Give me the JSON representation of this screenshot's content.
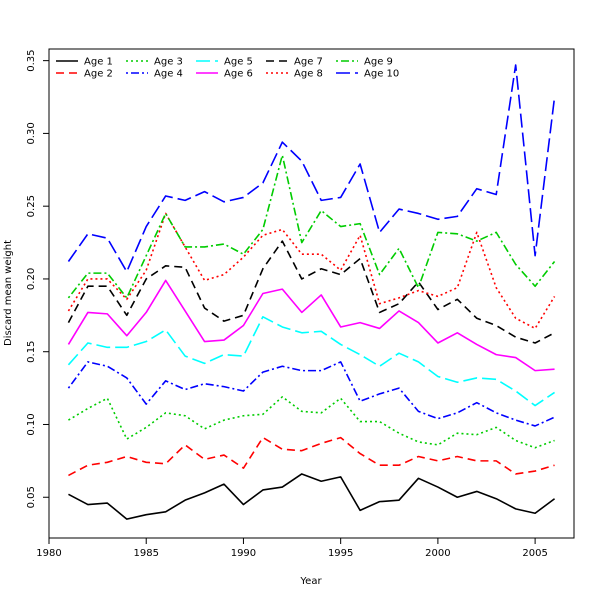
{
  "chart_data": {
    "type": "line",
    "xlabel": "Year",
    "ylabel": "Discard mean weight",
    "xlim": [
      1980,
      2007
    ],
    "ylim": [
      0.022,
      0.358
    ],
    "x_ticks": [
      1980,
      1985,
      1990,
      1995,
      2000,
      2005
    ],
    "y_ticks": [
      0.05,
      0.1,
      0.15,
      0.2,
      0.25,
      0.3,
      0.35
    ],
    "y_tick_labels": [
      "0.05",
      "0.10",
      "0.15",
      "0.20",
      "0.25",
      "0.30",
      "0.35"
    ],
    "legend_position": "top-left",
    "x": [
      1981,
      1982,
      1983,
      1984,
      1985,
      1986,
      1987,
      1988,
      1989,
      1990,
      1991,
      1992,
      1993,
      1994,
      1995,
      1996,
      1997,
      1998,
      1999,
      2000,
      2001,
      2002,
      2003,
      2004,
      2005,
      2006
    ],
    "series": [
      {
        "name": "Age 1",
        "color": "#000000",
        "dash": "solid",
        "values": [
          0.052,
          0.045,
          0.046,
          0.035,
          0.038,
          0.04,
          0.048,
          0.053,
          0.059,
          0.045,
          0.055,
          0.057,
          0.066,
          0.061,
          0.064,
          0.041,
          0.047,
          0.048,
          0.063,
          0.057,
          0.05,
          0.054,
          0.049,
          0.042,
          0.039,
          0.049
        ]
      },
      {
        "name": "Age 2",
        "color": "#ff0000",
        "dash": "dashed",
        "values": [
          0.065,
          0.072,
          0.074,
          0.078,
          0.074,
          0.073,
          0.086,
          0.076,
          0.079,
          0.07,
          0.091,
          0.083,
          0.082,
          0.087,
          0.091,
          0.08,
          0.072,
          0.072,
          0.078,
          0.075,
          0.078,
          0.075,
          0.075,
          0.066,
          0.068,
          0.072
        ]
      },
      {
        "name": "Age 3",
        "color": "#00cc00",
        "dash": "dotted",
        "values": [
          0.103,
          0.111,
          0.118,
          0.09,
          0.098,
          0.108,
          0.106,
          0.097,
          0.103,
          0.106,
          0.107,
          0.119,
          0.109,
          0.108,
          0.118,
          0.102,
          0.102,
          0.094,
          0.088,
          0.086,
          0.094,
          0.093,
          0.098,
          0.089,
          0.084,
          0.089
        ]
      },
      {
        "name": "Age 4",
        "color": "#0000ff",
        "dash": "dotdash",
        "values": [
          0.125,
          0.143,
          0.14,
          0.132,
          0.114,
          0.13,
          0.124,
          0.128,
          0.126,
          0.123,
          0.136,
          0.14,
          0.137,
          0.137,
          0.143,
          0.116,
          0.121,
          0.125,
          0.109,
          0.104,
          0.108,
          0.115,
          0.108,
          0.103,
          0.099,
          0.105
        ]
      },
      {
        "name": "Age 5",
        "color": "#00ffff",
        "dash": "longdash",
        "values": [
          0.141,
          0.156,
          0.153,
          0.153,
          0.157,
          0.165,
          0.147,
          0.142,
          0.148,
          0.147,
          0.174,
          0.167,
          0.163,
          0.164,
          0.155,
          0.148,
          0.14,
          0.149,
          0.143,
          0.133,
          0.129,
          0.132,
          0.131,
          0.123,
          0.113,
          0.122
        ]
      },
      {
        "name": "Age 6",
        "color": "#ff00ff",
        "dash": "solid",
        "values": [
          0.155,
          0.177,
          0.176,
          0.161,
          0.177,
          0.199,
          0.178,
          0.157,
          0.158,
          0.168,
          0.19,
          0.193,
          0.177,
          0.189,
          0.167,
          0.17,
          0.166,
          0.178,
          0.17,
          0.156,
          0.163,
          0.155,
          0.148,
          0.146,
          0.137,
          0.138
        ]
      },
      {
        "name": "Age 7",
        "color": "#000000",
        "dash": "dashed",
        "values": [
          0.17,
          0.195,
          0.195,
          0.175,
          0.2,
          0.209,
          0.208,
          0.18,
          0.171,
          0.175,
          0.207,
          0.226,
          0.2,
          0.207,
          0.203,
          0.214,
          0.177,
          0.183,
          0.198,
          0.179,
          0.186,
          0.173,
          0.168,
          0.16,
          0.156,
          0.163
        ]
      },
      {
        "name": "Age 8",
        "color": "#ff0000",
        "dash": "dotted",
        "values": [
          0.178,
          0.2,
          0.2,
          0.186,
          0.206,
          0.245,
          0.222,
          0.199,
          0.203,
          0.215,
          0.23,
          0.234,
          0.217,
          0.217,
          0.206,
          0.23,
          0.183,
          0.187,
          0.192,
          0.188,
          0.194,
          0.232,
          0.194,
          0.173,
          0.166,
          0.188
        ]
      },
      {
        "name": "Age 9",
        "color": "#00cc00",
        "dash": "dotdash",
        "values": [
          0.187,
          0.204,
          0.204,
          0.187,
          0.216,
          0.245,
          0.222,
          0.222,
          0.224,
          0.217,
          0.234,
          0.285,
          0.225,
          0.247,
          0.236,
          0.238,
          0.203,
          0.221,
          0.194,
          0.232,
          0.231,
          0.226,
          0.232,
          0.21,
          0.195,
          0.212
        ]
      },
      {
        "name": "Age 10",
        "color": "#0000ff",
        "dash": "longdash",
        "values": [
          0.212,
          0.231,
          0.228,
          0.205,
          0.236,
          0.257,
          0.254,
          0.26,
          0.253,
          0.256,
          0.266,
          0.294,
          0.281,
          0.254,
          0.256,
          0.279,
          0.232,
          0.248,
          0.245,
          0.241,
          0.243,
          0.262,
          0.258,
          0.347,
          0.216,
          0.325
        ]
      }
    ]
  }
}
